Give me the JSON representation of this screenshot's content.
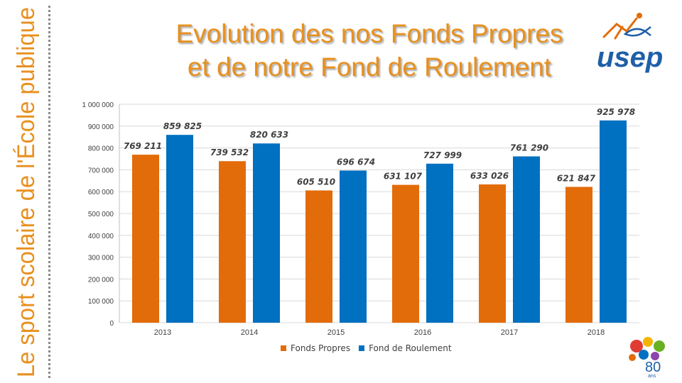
{
  "title_line1": "Evolution des nos Fonds Propres",
  "title_line2": "et de notre Fond de Roulement",
  "side_tagline": "Le sport scolaire de l'École publique",
  "logo_text": "usep",
  "anniversary_logo": {
    "number": "80",
    "suffix": "ans"
  },
  "colors": {
    "fonds_propres": "#e36c0a",
    "fond_roulement": "#0070c0",
    "title": "#e8901e",
    "tagline": "#e8901e",
    "logo_blue": "#1f5fa8"
  },
  "chart_data": {
    "type": "bar",
    "categories": [
      "2013",
      "2014",
      "2015",
      "2016",
      "2017",
      "2018"
    ],
    "series": [
      {
        "name": "Fonds Propres",
        "values": [
          769211,
          739532,
          605510,
          631107,
          633026,
          621847
        ],
        "labels": [
          "769 211",
          "739 532",
          "605 510",
          "631 107",
          "633 026",
          "621 847"
        ]
      },
      {
        "name": "Fond de Roulement",
        "values": [
          859825,
          820633,
          696674,
          727999,
          761290,
          925978
        ],
        "labels": [
          "859 825",
          "820 633",
          "696 674",
          "727 999",
          "761 290",
          "925 978"
        ]
      }
    ],
    "ylim": [
      0,
      1000000
    ],
    "yticks": [
      0,
      100000,
      200000,
      300000,
      400000,
      500000,
      600000,
      700000,
      800000,
      900000,
      1000000
    ],
    "ytick_labels": [
      "0",
      "100 000",
      "200 000",
      "300 000",
      "400 000",
      "500 000",
      "600 000",
      "700 000",
      "800 000",
      "900 000",
      "1 000 000"
    ],
    "grid": true,
    "legend": "bottom"
  }
}
